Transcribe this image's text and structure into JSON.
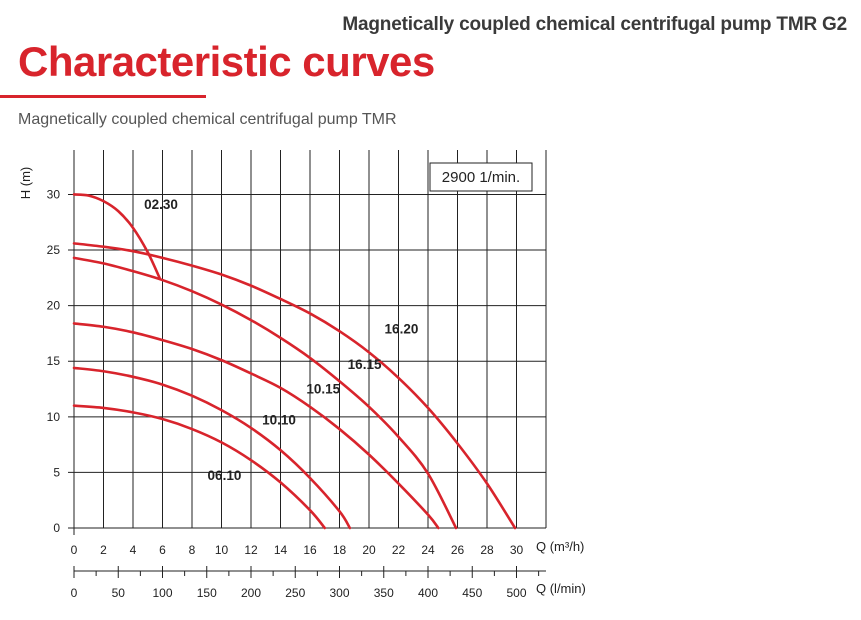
{
  "header": {
    "product_title": "Magnetically coupled chemical centrifugal pump TMR G2",
    "section_title": "Characteristic curves",
    "subtitle": "Magnetically coupled chemical centrifugal pump TMR"
  },
  "colors": {
    "accent": "#d8242c",
    "grid": "#222222",
    "curve": "#d8242c"
  },
  "chart_data": {
    "type": "line",
    "ylabel": "H (m)",
    "xlabel": "Q (m³/h)",
    "x2label": "Q (l/min)",
    "xlim": [
      0,
      32
    ],
    "ylim": [
      0,
      34
    ],
    "x_ticks": [
      0,
      2,
      4,
      6,
      8,
      10,
      12,
      14,
      16,
      18,
      20,
      22,
      24,
      26,
      28,
      30
    ],
    "y_ticks": [
      0,
      5,
      10,
      15,
      20,
      25,
      30
    ],
    "x2_ticks": [
      0,
      50,
      100,
      150,
      200,
      250,
      300,
      350,
      400,
      450,
      500
    ],
    "speed_label": "2900 1/min.",
    "grid": true,
    "series": [
      {
        "name": "02.30",
        "x": [
          0,
          1,
          2,
          3,
          4,
          5,
          5.8
        ],
        "y": [
          30,
          29.9,
          29.4,
          28.5,
          27,
          24.8,
          22.5
        ]
      },
      {
        "name": "06.10",
        "x": [
          0,
          2,
          4,
          6,
          8,
          10,
          12,
          14,
          16,
          17
        ],
        "y": [
          11,
          10.8,
          10.4,
          9.8,
          8.9,
          7.7,
          6.1,
          4.1,
          1.6,
          0
        ]
      },
      {
        "name": "10.10",
        "x": [
          0,
          2,
          4,
          6,
          8,
          10,
          12,
          14,
          16,
          18,
          18.7
        ],
        "y": [
          14.4,
          14.1,
          13.6,
          12.9,
          11.9,
          10.6,
          9,
          7,
          4.5,
          1.5,
          0
        ]
      },
      {
        "name": "10.15",
        "x": [
          0,
          2,
          4,
          6,
          8,
          10,
          12,
          14,
          16,
          18,
          20,
          22,
          24,
          24.7
        ],
        "y": [
          18.4,
          18.1,
          17.6,
          16.9,
          16.1,
          15.1,
          13.9,
          12.6,
          10.9,
          8.9,
          6.6,
          4,
          1.2,
          0
        ]
      },
      {
        "name": "16.15",
        "x": [
          0,
          2,
          4,
          6,
          8,
          10,
          12,
          14,
          16,
          18,
          20,
          22,
          24,
          25.9
        ],
        "y": [
          24.3,
          23.8,
          23.1,
          22.3,
          21.3,
          20.1,
          18.7,
          17.1,
          15.3,
          13.2,
          10.9,
          8.2,
          4.9,
          0
        ]
      },
      {
        "name": "16.20",
        "x": [
          0,
          2,
          4,
          6,
          8,
          10,
          12,
          14,
          16,
          18,
          20,
          22,
          24,
          26,
          28,
          29.9
        ],
        "y": [
          25.6,
          25.3,
          24.9,
          24.3,
          23.6,
          22.8,
          21.8,
          20.6,
          19.3,
          17.7,
          15.8,
          13.5,
          10.8,
          7.6,
          4,
          0
        ]
      }
    ],
    "label_positions": [
      {
        "text": "02.30",
        "x": 5.9,
        "y": 28.7
      },
      {
        "text": "06.10",
        "x": 10.2,
        "y": 4.3
      },
      {
        "text": "10.10",
        "x": 13.9,
        "y": 9.3
      },
      {
        "text": "10.15",
        "x": 16.9,
        "y": 12.1
      },
      {
        "text": "16.15",
        "x": 19.7,
        "y": 14.3
      },
      {
        "text": "16.20",
        "x": 22.2,
        "y": 17.5
      }
    ]
  }
}
